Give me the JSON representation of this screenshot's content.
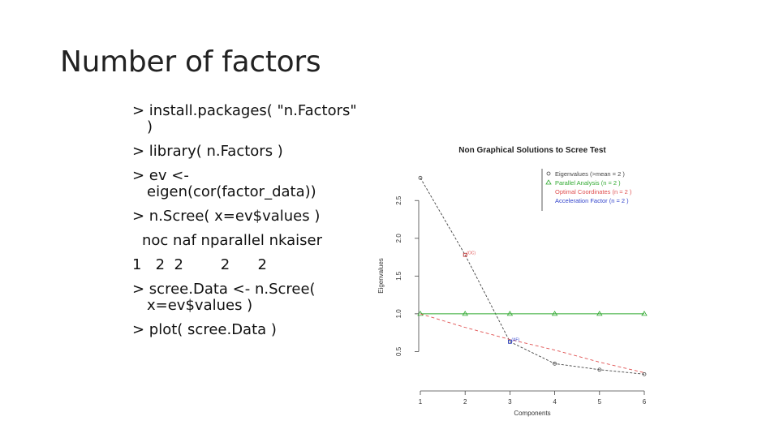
{
  "slide": {
    "title": "Number of factors",
    "code_lines": [
      "> install.packages( \"n.Factors\"",
      ")",
      "> library( n.Factors )",
      "> ev <-",
      "eigen(cor(factor_data))",
      "> n.Scree( x=ev$values )",
      "noc naf nparallel nkaiser",
      "1   2  2        2      2",
      "> scree.Data <- n.Scree(",
      "x=ev$values )",
      "> plot( scree.Data )"
    ]
  },
  "chart_data": {
    "type": "line",
    "title": "Non Graphical Solutions to Scree Test",
    "xlabel": "Components",
    "ylabel": "Eigenvalues",
    "xlim": [
      1,
      6
    ],
    "ylim": [
      0.15,
      2.9
    ],
    "x": [
      1,
      2,
      3,
      4,
      5,
      6
    ],
    "xticks": [
      "1",
      "2",
      "3",
      "4",
      "5",
      "6"
    ],
    "yticks": [
      "0.5",
      "1.0",
      "1.5",
      "2.0",
      "2.5"
    ],
    "ytick_values": [
      0.5,
      1.0,
      1.5,
      2.0,
      2.5
    ],
    "series": [
      {
        "name": "Eigenvalues (>mean =  2 )",
        "values": [
          2.8,
          1.78,
          0.63,
          0.34,
          0.26,
          0.2
        ],
        "color": "#444444",
        "marker": "circle"
      },
      {
        "name": "Parallel Analysis (n =  2 )",
        "values": [
          1.0,
          1.0,
          1.0,
          1.0,
          1.0,
          1.0
        ],
        "color": "#33aa33",
        "marker": "triangle"
      },
      {
        "name": "Optimal Coordinates (n =  2 )",
        "values": [
          1.0,
          0.82,
          0.66,
          0.52,
          0.36,
          0.22
        ],
        "color": "#e05050",
        "marker": "none"
      },
      {
        "name": "Acceleration Factor (n =  2 )",
        "color": "#3344cc",
        "marker": "none"
      }
    ],
    "annotations": [
      {
        "text": "(OC)",
        "x": 2,
        "y": 1.78,
        "color": "#e05050"
      },
      {
        "text": "(AF)",
        "x": 3,
        "y": 0.63,
        "color": "#3344cc"
      }
    ],
    "legend_position": "top-right",
    "grid": false
  }
}
